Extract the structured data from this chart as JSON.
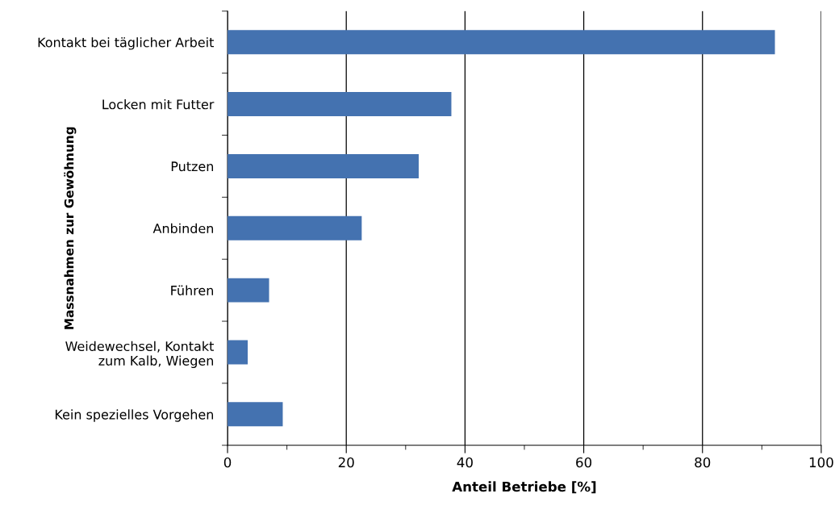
{
  "chart_data": {
    "type": "bar",
    "orientation": "horizontal",
    "xlabel": "Anteil Betriebe [%]",
    "ylabel": "Massnahmen zur Gewöhnung",
    "categories": [
      "Kontakt bei täglicher Arbeit",
      "Locken mit Futter",
      "Putzen",
      "Anbinden",
      "Führen",
      "Weidewechsel, Kontakt\nzum Kalb, Wiegen",
      "Kein spezielles Vorgehen"
    ],
    "values": [
      92.2,
      37.7,
      32.2,
      22.6,
      7.0,
      3.4,
      9.3
    ],
    "color": "#4472b0",
    "xlim": [
      0,
      100
    ],
    "xticks": [
      0,
      {
        "value": 10,
        "label": null
      },
      20,
      {
        "value": 30,
        "label": null
      },
      40,
      {
        "value": 50,
        "label": null
      },
      60,
      {
        "value": 70,
        "label": null
      },
      80,
      {
        "value": 90,
        "label": null
      },
      100
    ],
    "grid": "x",
    "legend": false
  }
}
